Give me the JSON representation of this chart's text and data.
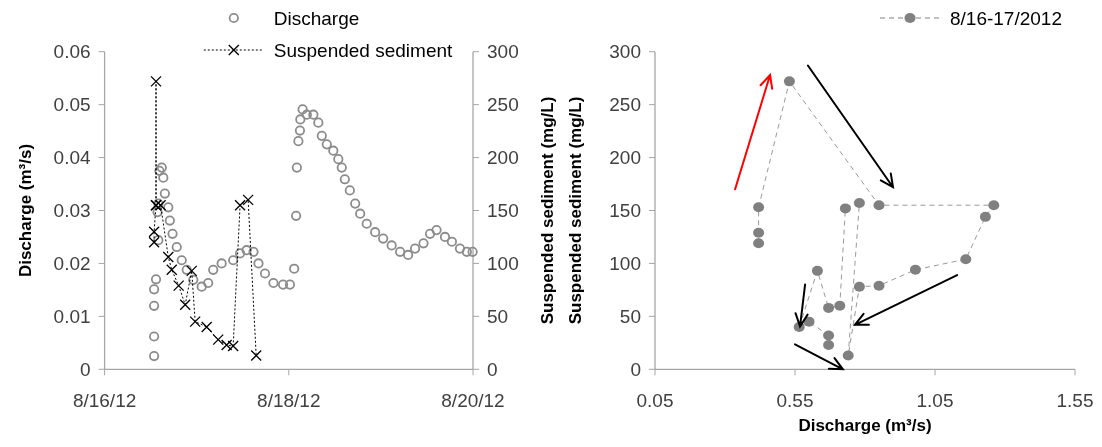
{
  "chart_data": [
    {
      "type": "scatter",
      "ylabel": "Discharge (m³/s)",
      "y2label": "Suspended sediment (mg/L)",
      "legend": "top",
      "xlim": [
        "2012-08-16",
        "2012-08-20"
      ],
      "xticks": [
        {
          "value": "2012-08-16",
          "label": "8/16/12"
        },
        {
          "value": "2012-08-18",
          "label": "8/18/12"
        },
        {
          "value": "2012-08-20",
          "label": "8/20/12"
        }
      ],
      "ylim": [
        0,
        0.06
      ],
      "yticks": [
        0,
        0.01,
        0.02,
        0.03,
        0.04,
        0.05,
        0.06
      ],
      "y2lim": [
        0,
        300
      ],
      "y2ticks": [
        0,
        50,
        100,
        150,
        200,
        250,
        300
      ],
      "series": [
        {
          "name": "Discharge",
          "marker": "circle",
          "color": "#8c8c8c",
          "x": [
            "2012-08-16T12:54",
            "2012-08-16T12:54",
            "2012-08-16T12:54",
            "2012-08-16T12:54",
            "2012-08-16T13:24",
            "2012-08-16T14:00",
            "2012-08-16T13:48",
            "2012-08-16T14:00",
            "2012-08-16T14:18",
            "2012-08-16T14:54",
            "2012-08-16T15:18",
            "2012-08-16T15:42",
            "2012-08-16T16:36",
            "2012-08-16T17:00",
            "2012-08-16T17:42",
            "2012-08-16T18:48",
            "2012-08-16T20:06",
            "2012-08-16T21:24",
            "2012-08-16T23:06",
            "2012-08-17T01:18",
            "2012-08-17T03:00",
            "2012-08-17T04:18",
            "2012-08-17T06:30",
            "2012-08-17T09:30",
            "2012-08-17T11:18",
            "2012-08-17T13:00",
            "2012-08-17T14:48",
            "2012-08-17T16:06",
            "2012-08-17T17:48",
            "2012-08-17T20:00",
            "2012-08-17T22:30",
            "2012-08-18T00:18",
            "2012-08-18T01:24",
            "2012-08-18T01:54",
            "2012-08-18T02:06",
            "2012-08-18T02:30",
            "2012-08-18T02:54",
            "2012-08-18T03:00",
            "2012-08-18T03:36",
            "2012-08-18T04:42",
            "2012-08-18T06:24",
            "2012-08-18T07:42",
            "2012-08-18T08:36",
            "2012-08-18T09:54",
            "2012-08-18T11:36",
            "2012-08-18T12:54",
            "2012-08-18T13:48",
            "2012-08-18T14:36",
            "2012-08-18T15:54",
            "2012-08-18T17:18",
            "2012-08-18T18:36",
            "2012-08-18T20:18",
            "2012-08-18T22:30",
            "2012-08-19T00:36",
            "2012-08-19T02:48",
            "2012-08-19T05:00",
            "2012-08-19T07:06",
            "2012-08-19T08:54",
            "2012-08-19T11:06",
            "2012-08-19T12:48",
            "2012-08-19T14:30",
            "2012-08-19T16:42",
            "2012-08-19T18:30",
            "2012-08-19T20:36",
            "2012-08-19T22:24",
            "2012-08-19T23:54"
          ],
          "values": [
            0.0025,
            0.0062,
            0.012,
            0.0151,
            0.017,
            0.0244,
            0.0297,
            0.0313,
            0.0375,
            0.0381,
            0.0362,
            0.0332,
            0.0306,
            0.0281,
            0.0256,
            0.0231,
            0.0206,
            0.0188,
            0.0169,
            0.0156,
            0.0163,
            0.0188,
            0.02,
            0.0206,
            0.0219,
            0.0225,
            0.0222,
            0.02,
            0.0181,
            0.0163,
            0.016,
            0.016,
            0.019,
            0.029,
            0.0381,
            0.0431,
            0.0451,
            0.0472,
            0.0491,
            0.0481,
            0.0481,
            0.0466,
            0.0441,
            0.0425,
            0.0413,
            0.0397,
            0.0381,
            0.0359,
            0.0338,
            0.0313,
            0.0294,
            0.0275,
            0.0259,
            0.0247,
            0.0234,
            0.0222,
            0.0216,
            0.0228,
            0.0238,
            0.0256,
            0.0263,
            0.025,
            0.0241,
            0.0228,
            0.0222,
            0.0222
          ]
        },
        {
          "name": "Suspended sediment",
          "type": "line",
          "axis": "y2",
          "marker": "cross",
          "line_style": "dotted",
          "color": "#000000",
          "x": [
            "2012-08-16T12:54",
            "2012-08-16T12:54",
            "2012-08-16T13:24",
            "2012-08-16T13:24",
            "2012-08-16T13:24",
            "2012-08-16T14:36",
            "2012-08-16T16:36",
            "2012-08-16T17:30",
            "2012-08-16T19:18",
            "2012-08-16T21:00",
            "2012-08-16T22:42",
            "2012-08-16T23:36",
            "2012-08-17T02:36",
            "2012-08-17T05:36",
            "2012-08-17T07:48",
            "2012-08-17T09:30",
            "2012-08-17T11:18",
            "2012-08-17T13:24",
            "2012-08-17T15:30"
          ],
          "values": [
            120,
            130,
            155,
            272,
            155,
            155,
            106,
            94,
            79,
            61,
            93,
            45,
            40,
            28,
            23,
            22,
            155,
            160,
            13
          ]
        }
      ]
    },
    {
      "type": "line",
      "xlabel": "Discharge (m³/s)",
      "ylabel": "Suspended sediment (mg/L)",
      "legend": "top right",
      "xlim": [
        0.05,
        1.55
      ],
      "xticks": [
        0.05,
        0.55,
        1.05,
        1.55
      ],
      "ylim": [
        0,
        300
      ],
      "yticks": [
        0,
        50,
        100,
        150,
        200,
        250,
        300
      ],
      "series": [
        {
          "name": "8/16-17/2012",
          "marker": "circle",
          "line_style": "dashed",
          "color": "#808080",
          "x": [
            0.42,
            0.42,
            0.42,
            0.53,
            0.85,
            1.26,
            1.23,
            1.16,
            0.98,
            0.85,
            0.78,
            0.74,
            0.78,
            0.73,
            0.71,
            0.67,
            0.63,
            0.565,
            0.6,
            0.67,
            0.67
          ],
          "values": [
            119,
            129,
            153,
            272,
            155,
            155,
            144,
            104,
            94,
            79,
            78,
            13,
            157,
            152,
            60,
            58,
            93,
            40,
            45,
            32,
            23
          ]
        }
      ]
    }
  ]
}
